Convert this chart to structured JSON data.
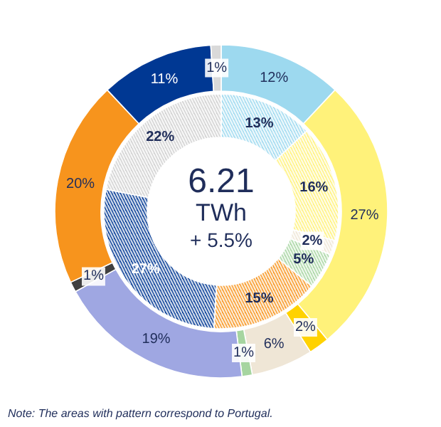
{
  "chart_data": {
    "type": "donut",
    "annotations": [
      "6.21",
      "TWh",
      "+ 5.5%",
      "Note: The  areas with pattern correspond  to Portugal."
    ],
    "series": [
      {
        "values": [
          12,
          27,
          2,
          6,
          1,
          19,
          1,
          20,
          11,
          1
        ],
        "colors": [
          "#9dd9ef",
          "#fff27a",
          "#ffd200",
          "#efe6d6",
          "#a6d5a0",
          "#9fa7e2",
          "#404040",
          "#f7941d",
          "#003893",
          "#d9d9d9"
        ],
        "value_labels": [
          "12%",
          "27%",
          "2%",
          "6%",
          "1%",
          "19%",
          "1%",
          "20%",
          "11%",
          "1%"
        ]
      },
      {
        "values": [
          13,
          16,
          2,
          5,
          15,
          27,
          22
        ],
        "colors": [
          "#9dd9ef",
          "#fff27a",
          "#efe6d6",
          "#a6d5a0",
          "#f7941d",
          "#003893",
          "#d0d0d0"
        ],
        "value_labels": [
          "13%",
          "16%",
          "2%",
          "5%",
          "15%",
          "27%",
          "22%"
        ]
      }
    ]
  }
}
